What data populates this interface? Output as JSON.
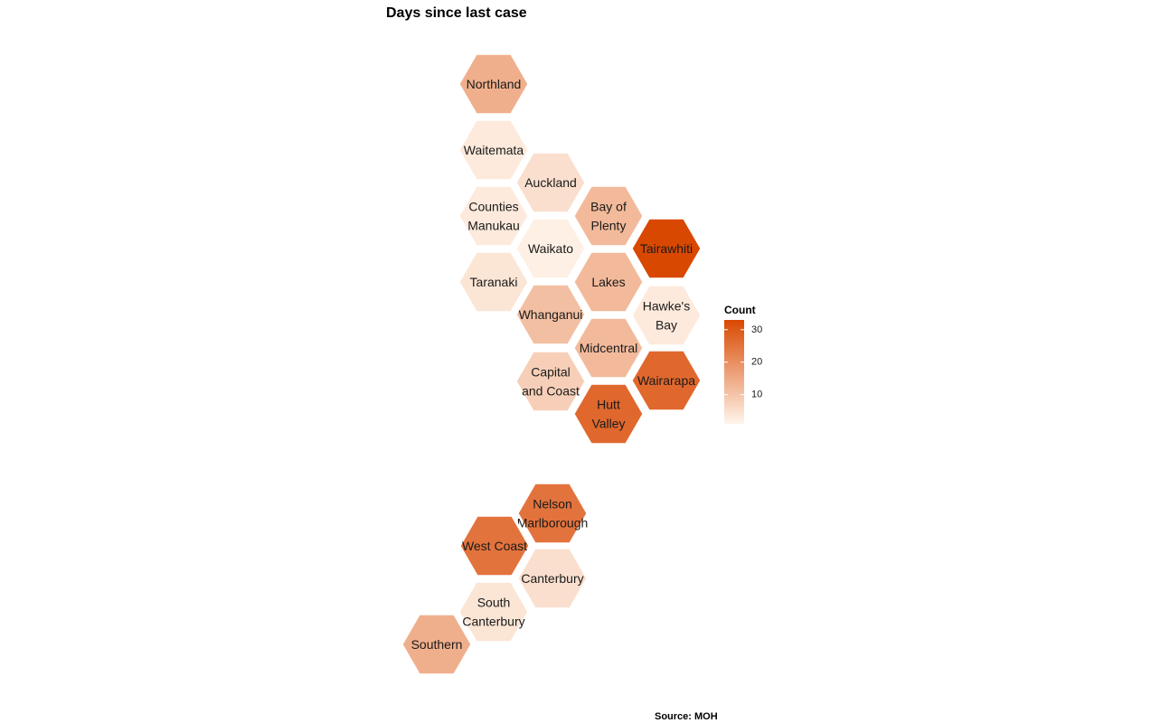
{
  "chart_data": {
    "type": "hexmap",
    "title": "Days since last case",
    "caption": "Source: MOH",
    "legend": {
      "title": "Count",
      "ticks": [
        10,
        20,
        30
      ],
      "range": [
        1,
        33
      ],
      "color_low": "#fff5eb",
      "color_high": "#d94801"
    },
    "regions": [
      {
        "name": "Northland",
        "lines": [
          "Northland"
        ],
        "value": 14
      },
      {
        "name": "Waitemata",
        "lines": [
          "Waitemata"
        ],
        "value": 3
      },
      {
        "name": "Auckland",
        "lines": [
          "Auckland"
        ],
        "value": 5
      },
      {
        "name": "Counties Manukau",
        "lines": [
          "Counties",
          "Manukau"
        ],
        "value": 3
      },
      {
        "name": "Bay of Plenty",
        "lines": [
          "Bay of",
          "Plenty"
        ],
        "value": 12
      },
      {
        "name": "Waikato",
        "lines": [
          "Waikato"
        ],
        "value": 2
      },
      {
        "name": "Tairawhiti",
        "lines": [
          "Tairawhiti"
        ],
        "value": 33
      },
      {
        "name": "Taranaki",
        "lines": [
          "Taranaki"
        ],
        "value": 4
      },
      {
        "name": "Lakes",
        "lines": [
          "Lakes"
        ],
        "value": 12
      },
      {
        "name": "Whanganui",
        "lines": [
          "Whanganui"
        ],
        "value": 11
      },
      {
        "name": "Hawke's Bay",
        "lines": [
          "Hawke's",
          "Bay"
        ],
        "value": 3
      },
      {
        "name": "Midcentral",
        "lines": [
          "Midcentral"
        ],
        "value": 12
      },
      {
        "name": "Capital and Coast",
        "lines": [
          "Capital",
          "and Coast"
        ],
        "value": 8
      },
      {
        "name": "Wairarapa",
        "lines": [
          "Wairarapa"
        ],
        "value": 27
      },
      {
        "name": "Hutt Valley",
        "lines": [
          "Hutt",
          "Valley"
        ],
        "value": 27
      },
      {
        "name": "Nelson Marlborough",
        "lines": [
          "Nelson",
          "Marlborough"
        ],
        "value": 25
      },
      {
        "name": "West Coast",
        "lines": [
          "West Coast"
        ],
        "value": 25
      },
      {
        "name": "Canterbury",
        "lines": [
          "Canterbury"
        ],
        "value": 5
      },
      {
        "name": "South Canterbury",
        "lines": [
          "South",
          "Canterbury"
        ],
        "value": 4
      },
      {
        "name": "Southern",
        "lines": [
          "Southern"
        ],
        "value": 14
      }
    ]
  }
}
